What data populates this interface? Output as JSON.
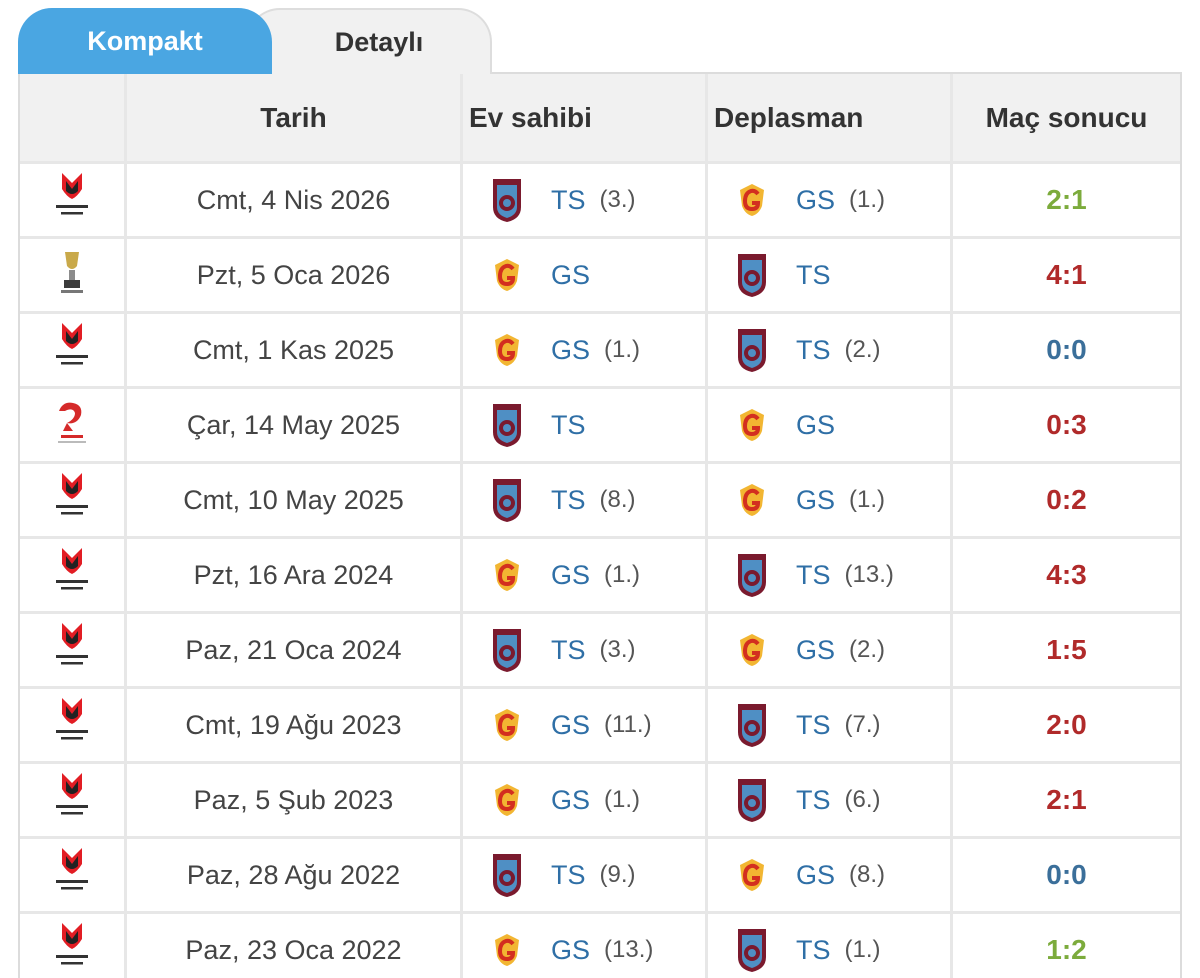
{
  "tabs": [
    {
      "label": "Kompakt",
      "active": true
    },
    {
      "label": "Detaylı",
      "active": false
    }
  ],
  "headers": {
    "competition": "",
    "date": "Tarih",
    "home": "Ev sahibi",
    "away": "Deplasman",
    "result": "Maç sonucu"
  },
  "colors": {
    "active_tab": "#4aa6e2",
    "team_link": "#2f6fa6",
    "result_win": "#7cab3c",
    "result_loss": "#b02a2a",
    "result_draw": "#3b6f9a"
  },
  "matches": [
    {
      "competition": "super-lig-logo",
      "date": "Cmt, 4 Nis 2026",
      "home": "TS",
      "home_rank": "(3.)",
      "away": "GS",
      "away_rank": "(1.)",
      "result": "2:1",
      "result_type": "win"
    },
    {
      "competition": "super-cup-logo",
      "date": "Pzt, 5 Oca 2026",
      "home": "GS",
      "home_rank": "",
      "away": "TS",
      "away_rank": "",
      "result": "4:1",
      "result_type": "loss"
    },
    {
      "competition": "super-lig-logo",
      "date": "Cmt, 1 Kas 2025",
      "home": "GS",
      "home_rank": "(1.)",
      "away": "TS",
      "away_rank": "(2.)",
      "result": "0:0",
      "result_type": "draw"
    },
    {
      "competition": "turkish-cup-logo",
      "date": "Çar, 14 May 2025",
      "home": "TS",
      "home_rank": "",
      "away": "GS",
      "away_rank": "",
      "result": "0:3",
      "result_type": "loss"
    },
    {
      "competition": "super-lig-logo",
      "date": "Cmt, 10 May 2025",
      "home": "TS",
      "home_rank": "(8.)",
      "away": "GS",
      "away_rank": "(1.)",
      "result": "0:2",
      "result_type": "loss"
    },
    {
      "competition": "super-lig-logo",
      "date": "Pzt, 16 Ara 2024",
      "home": "GS",
      "home_rank": "(1.)",
      "away": "TS",
      "away_rank": "(13.)",
      "result": "4:3",
      "result_type": "loss"
    },
    {
      "competition": "super-lig-logo",
      "date": "Paz, 21 Oca 2024",
      "home": "TS",
      "home_rank": "(3.)",
      "away": "GS",
      "away_rank": "(2.)",
      "result": "1:5",
      "result_type": "loss"
    },
    {
      "competition": "super-lig-logo",
      "date": "Cmt, 19 Ağu 2023",
      "home": "GS",
      "home_rank": "(11.)",
      "away": "TS",
      "away_rank": "(7.)",
      "result": "2:0",
      "result_type": "loss"
    },
    {
      "competition": "super-lig-logo",
      "date": "Paz, 5 Şub 2023",
      "home": "GS",
      "home_rank": "(1.)",
      "away": "TS",
      "away_rank": "(6.)",
      "result": "2:1",
      "result_type": "loss"
    },
    {
      "competition": "super-lig-logo",
      "date": "Paz, 28 Ağu 2022",
      "home": "TS",
      "home_rank": "(9.)",
      "away": "GS",
      "away_rank": "(8.)",
      "result": "0:0",
      "result_type": "draw"
    },
    {
      "competition": "super-lig-logo",
      "date": "Paz, 23 Oca 2022",
      "home": "GS",
      "home_rank": "(13.)",
      "away": "TS",
      "away_rank": "(1.)",
      "result": "1:2",
      "result_type": "win"
    }
  ]
}
